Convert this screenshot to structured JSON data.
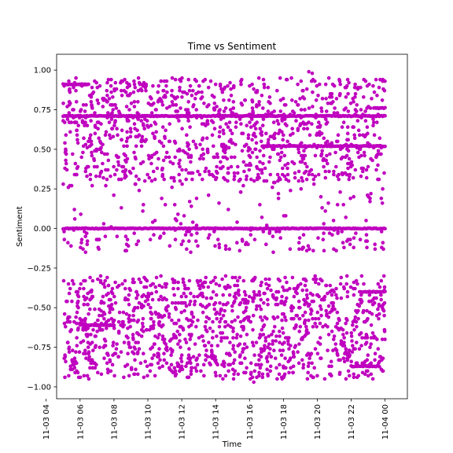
{
  "chart_data": {
    "type": "scatter",
    "title": "Time vs Sentiment",
    "xlabel": "Time",
    "ylabel": "Sentiment",
    "x_range": [
      "2023-11-03 04:37",
      "2023-11-04 01:19"
    ],
    "ylim": [
      -1.075,
      1.1
    ],
    "x_ticks": [
      "11-03 04",
      "11-03 06",
      "11-03 08",
      "11-03 10",
      "11-03 12",
      "11-03 14",
      "11-03 16",
      "11-03 18",
      "11-03 20",
      "11-03 22",
      "11-04 00"
    ],
    "y_ticks": [
      "−1.00",
      "−0.75",
      "−0.50",
      "−0.25",
      "0.00",
      "0.25",
      "0.50",
      "0.75",
      "1.00"
    ],
    "y_tick_values": [
      -1.0,
      -0.75,
      -0.5,
      -0.25,
      0.0,
      0.25,
      0.5,
      0.75,
      1.0
    ],
    "data_window": {
      "start": "2023-11-03 05:00",
      "end": "2023-11-04 00:00"
    },
    "dense_levels": [
      {
        "y": 0.0,
        "from": "2023-11-03 05:00",
        "to": "2023-11-04 00:00"
      },
      {
        "y": 0.91,
        "from": "2023-11-03 05:00",
        "to": "2023-11-03 06:30"
      },
      {
        "y": 0.71,
        "from": "2023-11-03 05:00",
        "to": "2023-11-04 00:00"
      },
      {
        "y": 0.52,
        "from": "2023-11-03 16:45",
        "to": "2023-11-04 00:00"
      },
      {
        "y": -0.61,
        "from": "2023-11-03 06:00",
        "to": "2023-11-03 08:00"
      },
      {
        "y": -0.87,
        "from": "2023-11-03 22:00",
        "to": "2023-11-03 23:40"
      },
      {
        "y": -0.4,
        "from": "2023-11-03 22:30",
        "to": "2023-11-04 00:00"
      },
      {
        "y": 0.76,
        "from": "2023-11-03 23:20",
        "to": "2023-11-04 00:00"
      }
    ],
    "bands": [
      {
        "from": 0.3,
        "to": 0.95
      },
      {
        "from": -0.95,
        "to": -0.3
      },
      {
        "from": -0.15,
        "to": 0.3
      }
    ],
    "point_count": 2600,
    "color": "#bf00bf",
    "grid": false,
    "legend": "none"
  }
}
